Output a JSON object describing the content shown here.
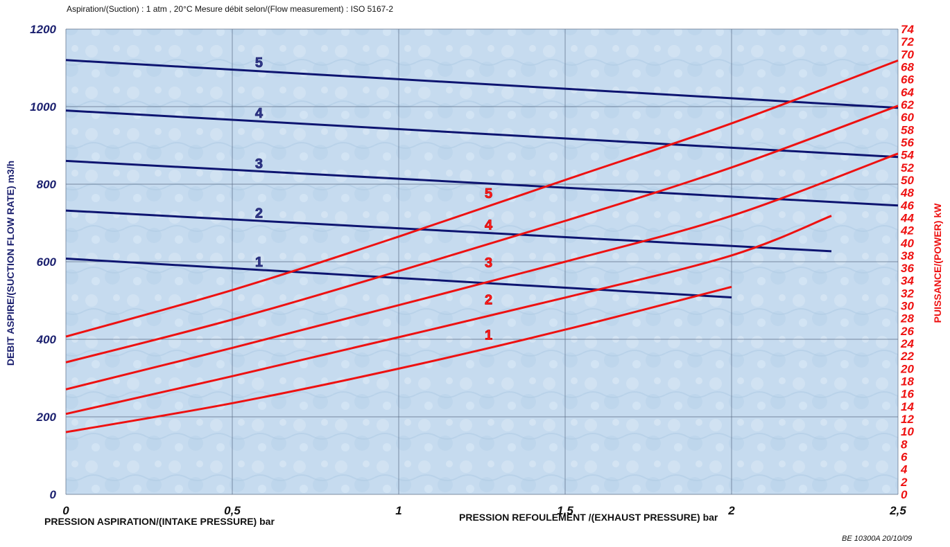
{
  "chart_data": {
    "type": "line",
    "subtitle": "Aspiration/(Suction) : 1 atm , 20°C  Mesure débit selon/(Flow measurement) : ISO 5167-2",
    "xlabel_left": "PRESSION ASPIRATION/(INTAKE PRESSURE) bar",
    "xlabel_right": "PRESSION REFOULEMENT /(EXHAUST PRESSURE) bar",
    "ylabel_left": "DEBIT ASPIRE/(SUCTION FLOW RATE) m3/h",
    "ylabel_right": "PUISSANCE/(POWER) kW",
    "reference": "BE 10300A 20/10/09",
    "xlim": [
      0,
      2.5
    ],
    "ylim_left": [
      0,
      1200
    ],
    "ylim_right": [
      0,
      74
    ],
    "x_ticks": [
      "0",
      "0,5",
      "1",
      "1,5",
      "2",
      "2,5"
    ],
    "left_ticks": [
      "0",
      "200",
      "400",
      "600",
      "800",
      "1000",
      "1200"
    ],
    "right_ticks": [
      "0",
      "2",
      "4",
      "6",
      "8",
      "10",
      "12",
      "14",
      "16",
      "18",
      "20",
      "22",
      "24",
      "26",
      "28",
      "30",
      "32",
      "34",
      "36",
      "38",
      "40",
      "42",
      "44",
      "46",
      "48",
      "50",
      "52",
      "54",
      "56",
      "58",
      "60",
      "62",
      "64",
      "66",
      "68",
      "70",
      "72",
      "74"
    ],
    "grid": true,
    "flow_series": [
      {
        "name": "1",
        "x": [
          0,
          2
        ],
        "y": [
          608,
          508
        ],
        "label_at": [
          0.58,
          600
        ]
      },
      {
        "name": "2",
        "x": [
          0,
          2.3
        ],
        "y": [
          732,
          627
        ],
        "label_at": [
          0.58,
          726
        ]
      },
      {
        "name": "3",
        "x": [
          0,
          2.5
        ],
        "y": [
          860,
          745
        ],
        "label_at": [
          0.58,
          854
        ]
      },
      {
        "name": "4",
        "x": [
          0,
          2.5
        ],
        "y": [
          990,
          870
        ],
        "label_at": [
          0.58,
          984
        ]
      },
      {
        "name": "5",
        "x": [
          0,
          2.5
        ],
        "y": [
          1120,
          997
        ],
        "label_at": [
          0.58,
          1114
        ]
      }
    ],
    "power_series": [
      {
        "name": "1",
        "x": [
          0,
          0.5,
          1,
          1.5,
          2
        ],
        "y": [
          9.9,
          14.5,
          20.0,
          26.2,
          33.0
        ],
        "label_at": [
          1.27,
          25.4
        ]
      },
      {
        "name": "2",
        "x": [
          0,
          0.5,
          1,
          1.5,
          2,
          2.3
        ],
        "y": [
          12.8,
          18.8,
          25.0,
          31.3,
          38.0,
          44.3
        ],
        "label_at": [
          1.27,
          31.0
        ]
      },
      {
        "name": "3",
        "x": [
          0,
          0.5,
          1,
          1.5,
          2,
          2.5
        ],
        "y": [
          16.7,
          23.3,
          30.1,
          37.0,
          44.3,
          54.2
        ],
        "label_at": [
          1.27,
          36.9
        ]
      },
      {
        "name": "4",
        "x": [
          0,
          0.5,
          1,
          1.5,
          2,
          2.5
        ],
        "y": [
          21.0,
          27.8,
          35.5,
          43.5,
          52.0,
          61.8
        ],
        "label_at": [
          1.27,
          42.9
        ]
      },
      {
        "name": "5",
        "x": [
          0,
          0.5,
          1,
          1.5,
          2,
          2.5
        ],
        "y": [
          25.1,
          32.5,
          41.0,
          50.0,
          59.0,
          69.0
        ],
        "label_at": [
          1.27,
          47.9
        ]
      }
    ],
    "flow_color": "#0d1470",
    "power_color": "#ee1111",
    "background_color": "#c9ddf0"
  }
}
